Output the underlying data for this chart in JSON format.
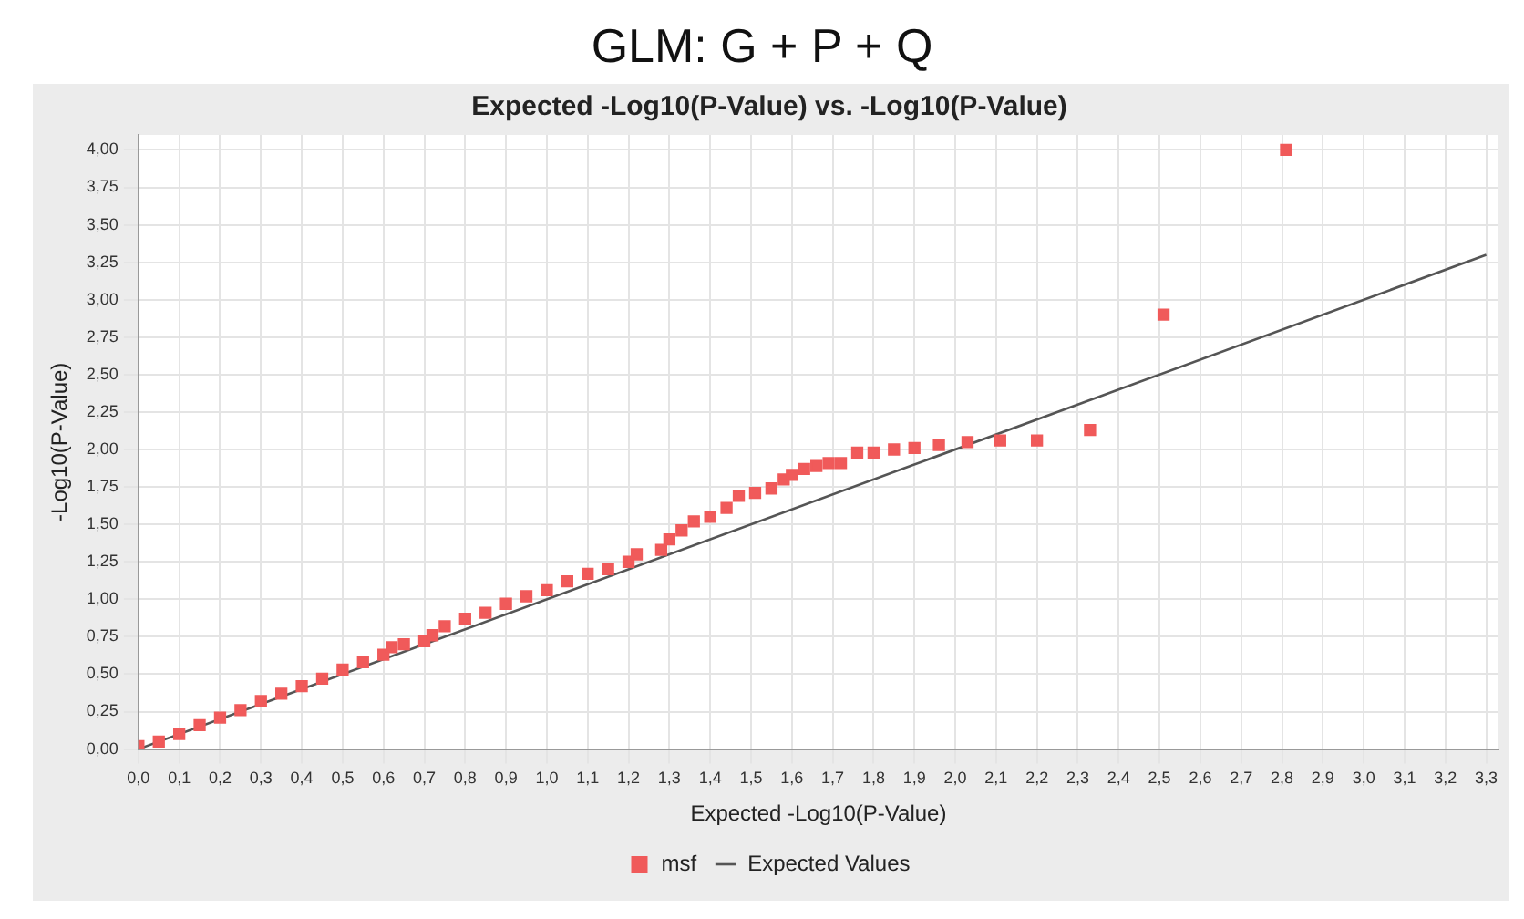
{
  "chart_data": {
    "type": "scatter",
    "title": "GLM: G + P + Q",
    "subtitle": "Expected -Log10(P-Value) vs. -Log10(P-Value)",
    "xlabel": "Expected -Log10(P-Value)",
    "ylabel": "-Log10(P-Value)",
    "series": [
      {
        "name": "msf",
        "marker": "square",
        "color": "#f05a5a",
        "x": [
          0.0,
          0.05,
          0.1,
          0.15,
          0.2,
          0.25,
          0.3,
          0.35,
          0.4,
          0.45,
          0.5,
          0.55,
          0.6,
          0.62,
          0.65,
          0.7,
          0.72,
          0.75,
          0.8,
          0.85,
          0.9,
          0.95,
          1.0,
          1.05,
          1.1,
          1.15,
          1.2,
          1.22,
          1.28,
          1.3,
          1.33,
          1.36,
          1.4,
          1.44,
          1.47,
          1.51,
          1.55,
          1.58,
          1.6,
          1.63,
          1.66,
          1.69,
          1.72,
          1.76,
          1.8,
          1.85,
          1.9,
          1.96,
          2.03,
          2.11,
          2.2,
          2.33,
          2.51,
          2.81
        ],
        "values": [
          0.02,
          0.05,
          0.1,
          0.16,
          0.21,
          0.26,
          0.32,
          0.37,
          0.42,
          0.47,
          0.53,
          0.58,
          0.63,
          0.68,
          0.7,
          0.72,
          0.76,
          0.82,
          0.87,
          0.91,
          0.97,
          1.02,
          1.06,
          1.12,
          1.17,
          1.2,
          1.25,
          1.3,
          1.33,
          1.4,
          1.46,
          1.52,
          1.55,
          1.61,
          1.69,
          1.71,
          1.74,
          1.8,
          1.83,
          1.87,
          1.89,
          1.91,
          1.91,
          1.98,
          1.98,
          2.0,
          2.01,
          2.03,
          2.05,
          2.06,
          2.06,
          2.13,
          2.9,
          4.0
        ]
      },
      {
        "name": "Expected Values",
        "type": "line",
        "marker": "none",
        "color": "#555555",
        "x": [
          0,
          3.3
        ],
        "values": [
          0,
          3.3
        ]
      }
    ],
    "xlim": [
      0,
      3.33
    ],
    "xticks": [
      {
        "value": 0,
        "label": "0,0"
      },
      {
        "value": 0.1,
        "label": "0,1"
      },
      {
        "value": 0.2,
        "label": "0,2"
      },
      {
        "value": 0.3,
        "label": "0,3"
      },
      {
        "value": 0.4,
        "label": "0,4"
      },
      {
        "value": 0.5,
        "label": "0,5"
      },
      {
        "value": 0.6,
        "label": "0,6"
      },
      {
        "value": 0.7,
        "label": "0,7"
      },
      {
        "value": 0.8,
        "label": "0,8"
      },
      {
        "value": 0.9,
        "label": "0,9"
      },
      {
        "value": 1.0,
        "label": "1,0"
      },
      {
        "value": 1.1,
        "label": "1,1"
      },
      {
        "value": 1.2,
        "label": "1,2"
      },
      {
        "value": 1.3,
        "label": "1,3"
      },
      {
        "value": 1.4,
        "label": "1,4"
      },
      {
        "value": 1.5,
        "label": "1,5"
      },
      {
        "value": 1.6,
        "label": "1,6"
      },
      {
        "value": 1.7,
        "label": "1,7"
      },
      {
        "value": 1.8,
        "label": "1,8"
      },
      {
        "value": 1.9,
        "label": "1,9"
      },
      {
        "value": 2.0,
        "label": "2,0"
      },
      {
        "value": 2.1,
        "label": "2,1"
      },
      {
        "value": 2.2,
        "label": "2,2"
      },
      {
        "value": 2.3,
        "label": "2,3"
      },
      {
        "value": 2.4,
        "label": "2,4"
      },
      {
        "value": 2.5,
        "label": "2,5"
      },
      {
        "value": 2.6,
        "label": "2,6"
      },
      {
        "value": 2.7,
        "label": "2,7"
      },
      {
        "value": 2.8,
        "label": "2,8"
      },
      {
        "value": 2.9,
        "label": "2,9"
      },
      {
        "value": 3.0,
        "label": "3,0"
      },
      {
        "value": 3.1,
        "label": "3,1"
      },
      {
        "value": 3.2,
        "label": "3,2"
      },
      {
        "value": 3.3,
        "label": "3,3"
      }
    ],
    "ylim": [
      0,
      4.1
    ],
    "yticks": [
      {
        "value": 0,
        "label": "0,00"
      },
      {
        "value": 0.25,
        "label": "0,25"
      },
      {
        "value": 0.5,
        "label": "0,50"
      },
      {
        "value": 0.75,
        "label": "0,75"
      },
      {
        "value": 1.0,
        "label": "1,00"
      },
      {
        "value": 1.25,
        "label": "1,25"
      },
      {
        "value": 1.5,
        "label": "1,50"
      },
      {
        "value": 1.75,
        "label": "1,75"
      },
      {
        "value": 2.0,
        "label": "2,00"
      },
      {
        "value": 2.25,
        "label": "2,25"
      },
      {
        "value": 2.5,
        "label": "2,50"
      },
      {
        "value": 2.75,
        "label": "2,75"
      },
      {
        "value": 3.0,
        "label": "3,00"
      },
      {
        "value": 3.25,
        "label": "3,25"
      },
      {
        "value": 3.5,
        "label": "3,50"
      },
      {
        "value": 3.75,
        "label": "3,75"
      },
      {
        "value": 4.0,
        "label": "4,00"
      }
    ],
    "grid": true,
    "legend": "bottom"
  }
}
